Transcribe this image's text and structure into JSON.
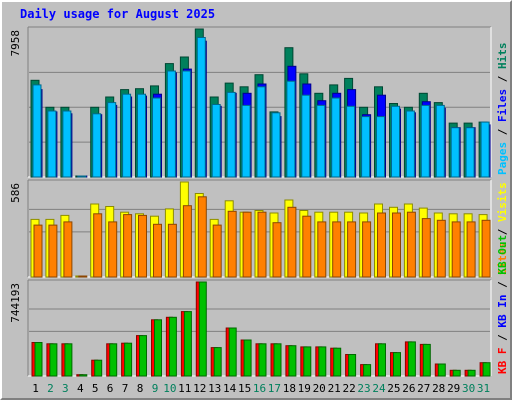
{
  "chart_data": {
    "type": "bar",
    "title": "Daily usage for August 2025",
    "colors": {
      "hits": "#00805c",
      "files": "#0000ff",
      "pages": "#00c0ff",
      "visits": "#ffff00",
      "sites": "#ff8000",
      "kb_in": "#00c000",
      "kb_out": "#00c000",
      "kb_f": "#ff0000",
      "background": "#c0c0c0",
      "plot_bg": "#c0c0c0",
      "weekend_day": "#00805c",
      "weekday_day": "#000000"
    },
    "categories": [
      "1",
      "2",
      "3",
      "4",
      "5",
      "6",
      "7",
      "8",
      "9",
      "10",
      "11",
      "12",
      "13",
      "14",
      "15",
      "16",
      "17",
      "18",
      "19",
      "20",
      "21",
      "22",
      "23",
      "24",
      "25",
      "26",
      "27",
      "28",
      "29",
      "30",
      "31"
    ],
    "weekend_days": [
      "2",
      "3",
      "9",
      "10",
      "16",
      "17",
      "23",
      "24",
      "30",
      "31"
    ],
    "panels": [
      {
        "name": "top",
        "ymax_label": "7958",
        "ylim": [
          0,
          7958
        ],
        "legend": [
          {
            "text": "Pages",
            "color": "#00c0ff"
          },
          {
            "text": " / ",
            "color": "#000000"
          },
          {
            "text": "Files",
            "color": "#0000ff"
          },
          {
            "text": " / ",
            "color": "#000000"
          },
          {
            "text": "Hits",
            "color": "#00805c"
          }
        ],
        "series": [
          {
            "name": "Hits",
            "color": "#00805c",
            "values": [
              5200,
              3750,
              3750,
              0,
              3750,
              4300,
              4700,
              4750,
              4900,
              6100,
              6450,
              7958,
              4300,
              5050,
              4850,
              5500,
              3500,
              6950,
              5550,
              4500,
              4950,
              5300,
              3750,
              4850,
              3950,
              3750,
              4500,
              4000,
              2900,
              2900,
              2950
            ]
          },
          {
            "name": "Files",
            "color": "#0000ff",
            "values": [
              4700,
              3500,
              3400,
              0,
              3350,
              3850,
              4300,
              4350,
              4450,
              5600,
              5800,
              7300,
              3800,
              4500,
              4500,
              5000,
              3250,
              5950,
              5000,
              4100,
              4500,
              4700,
              3350,
              4400,
              3650,
              3450,
              4050,
              3700,
              2650,
              2650,
              2800
            ]
          },
          {
            "name": "Pages",
            "color": "#00c0ff",
            "values": [
              4950,
              3550,
              3550,
              0,
              3400,
              4000,
              4450,
              4450,
              4250,
              5700,
              5700,
              7500,
              3900,
              4550,
              3850,
              4850,
              3450,
              5150,
              4400,
              3850,
              4250,
              3800,
              3250,
              3250,
              3800,
              3550,
              3850,
              3850,
              2650,
              2650,
              2950
            ]
          }
        ]
      },
      {
        "name": "middle",
        "ymax_label": "586",
        "ylim": [
          0,
          586
        ],
        "legend": [
          {
            "text": "Sites",
            "color": "#ff8000"
          },
          {
            "text": " / ",
            "color": "#000000"
          },
          {
            "text": "Visits",
            "color": "#ffff00"
          }
        ],
        "series": [
          {
            "name": "Visits",
            "color": "#ffff00",
            "values": [
              355,
              355,
              380,
              0,
              450,
              435,
              400,
              390,
              375,
              420,
              586,
              515,
              355,
              470,
              400,
              410,
              395,
              475,
              410,
              400,
              400,
              400,
              395,
              450,
              430,
              450,
              425,
              395,
              390,
              390,
              385
            ]
          },
          {
            "name": "Sites",
            "color": "#ff8000",
            "values": [
              320,
              320,
              340,
              0,
              390,
              340,
              385,
              380,
              325,
              325,
              440,
              495,
              320,
              405,
              400,
              400,
              335,
              430,
              375,
              340,
              340,
              340,
              340,
              395,
              395,
              400,
              360,
              350,
              340,
              340,
              350
            ]
          }
        ]
      },
      {
        "name": "bottom",
        "ymax_label": "744193",
        "ylim": [
          0,
          744193
        ],
        "legend": [
          {
            "text": "KB F",
            "color": "#ff0000"
          },
          {
            "text": " / ",
            "color": "#000000"
          },
          {
            "text": "KB In",
            "color": "#0000ff"
          },
          {
            "text": " / ",
            "color": "#000000"
          },
          {
            "text": "KB Out",
            "color": "#00c000"
          }
        ],
        "series": [
          {
            "name": "KB F",
            "color": "#ff0000",
            "values": [
              265000,
              255000,
              255000,
              10000,
              125000,
              255000,
              260000,
              320000,
              445000,
              465000,
              510000,
              744193,
              225000,
              380000,
              285000,
              255000,
              255000,
              240000,
              230000,
              230000,
              220000,
              170000,
              90000,
              255000,
              185000,
              270000,
              250000,
              95000,
              45000,
              45000,
              105000
            ]
          },
          {
            "name": "KB Out",
            "color": "#00c000",
            "values": [
              265000,
              255000,
              255000,
              10000,
              125000,
              255000,
              260000,
              320000,
              445000,
              465000,
              510000,
              744193,
              225000,
              380000,
              285000,
              255000,
              255000,
              240000,
              230000,
              230000,
              220000,
              170000,
              90000,
              255000,
              185000,
              270000,
              250000,
              95000,
              45000,
              45000,
              105000
            ]
          }
        ]
      }
    ]
  }
}
